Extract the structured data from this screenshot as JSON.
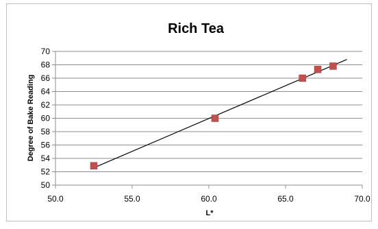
{
  "chart_data": {
    "type": "scatter",
    "title": "Rich Tea",
    "xlabel": "L*",
    "ylabel": "Degree of Bake Reading",
    "xlim": [
      50.0,
      70.0
    ],
    "ylim": [
      50,
      70
    ],
    "x_ticks": [
      "50.0",
      "55.0",
      "60.0",
      "65.0",
      "70.0"
    ],
    "y_ticks": [
      "50",
      "52",
      "54",
      "56",
      "58",
      "60",
      "62",
      "64",
      "66",
      "68",
      "70"
    ],
    "grid": true,
    "legend": "none",
    "marker_color": "#c0504d",
    "points": [
      {
        "x": 52.5,
        "y": 52.9
      },
      {
        "x": 60.4,
        "y": 60.0
      },
      {
        "x": 66.1,
        "y": 66.0
      },
      {
        "x": 67.1,
        "y": 67.3
      },
      {
        "x": 68.1,
        "y": 67.8
      }
    ],
    "trendline": {
      "type": "linear",
      "x": [
        52.5,
        69.0
      ],
      "y": [
        52.6,
        68.8
      ]
    }
  }
}
